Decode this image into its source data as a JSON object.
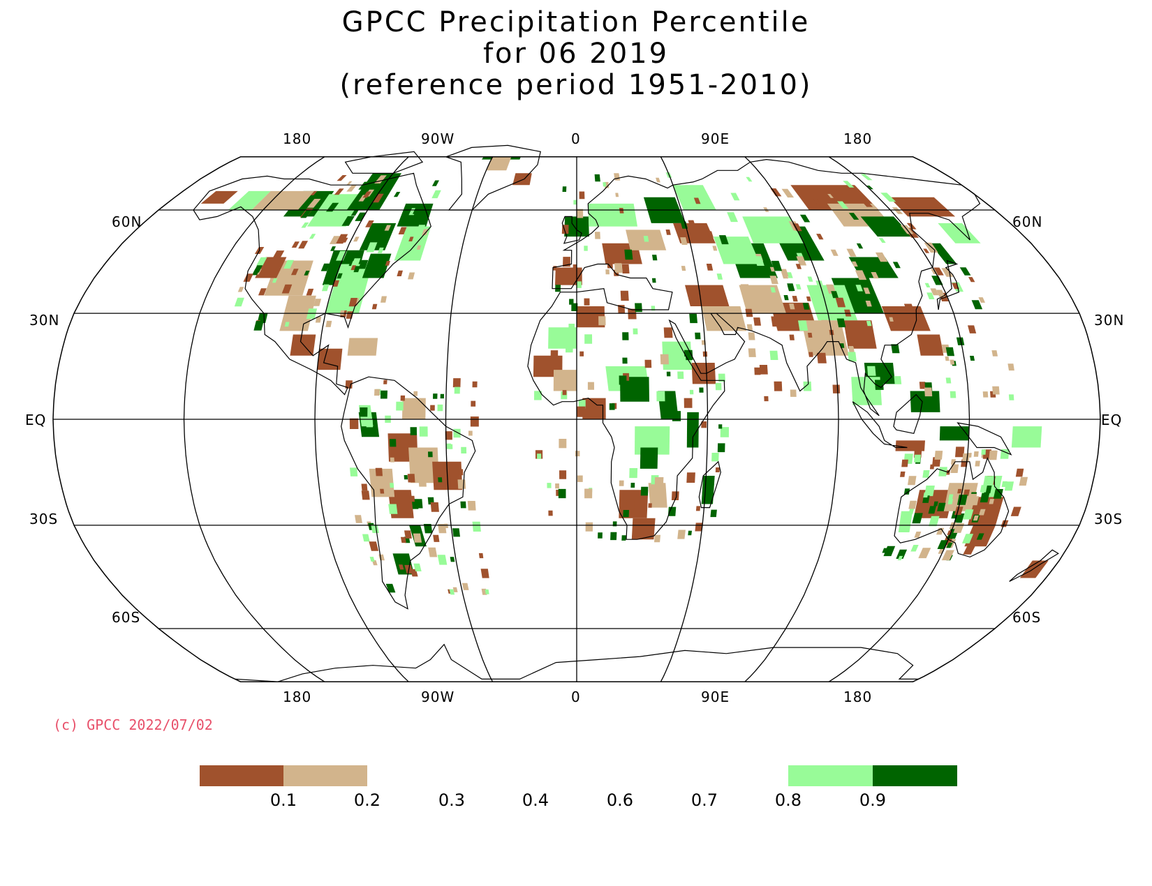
{
  "title": {
    "line1": "GPCC Precipitation Percentile",
    "line2": "for 06 2019",
    "line3": "(reference period 1951-2010)"
  },
  "map": {
    "projection": "Robinson",
    "longitude_labels_top": [
      "180",
      "90W",
      "0",
      "90E",
      "180"
    ],
    "longitude_labels_bottom": [
      "180",
      "90W",
      "0",
      "90E",
      "180"
    ],
    "latitude_labels_left": [
      "60N",
      "30N",
      "EQ",
      "30S",
      "60S"
    ],
    "latitude_labels_right": [
      "60N",
      "30N",
      "EQ",
      "30S",
      "60S"
    ],
    "colors": {
      "very_dry": "#a0522d",
      "dry": "#d2b48c",
      "wet": "#98fb98",
      "very_wet": "#006400",
      "grid": "#000000"
    }
  },
  "copyright": "(c) GPCC 2022/07/02",
  "legend": {
    "ticks": [
      "0.1",
      "0.2",
      "0.3",
      "0.4",
      "0.6",
      "0.7",
      "0.8",
      "0.9"
    ],
    "bins": [
      {
        "range": "<0.1",
        "color": "#a0522d"
      },
      {
        "range": "0.1-0.2",
        "color": "#d2b48c"
      },
      {
        "range": "0.8-0.9",
        "color": "#98fb98"
      },
      {
        "range": ">0.9",
        "color": "#006400"
      }
    ]
  }
}
